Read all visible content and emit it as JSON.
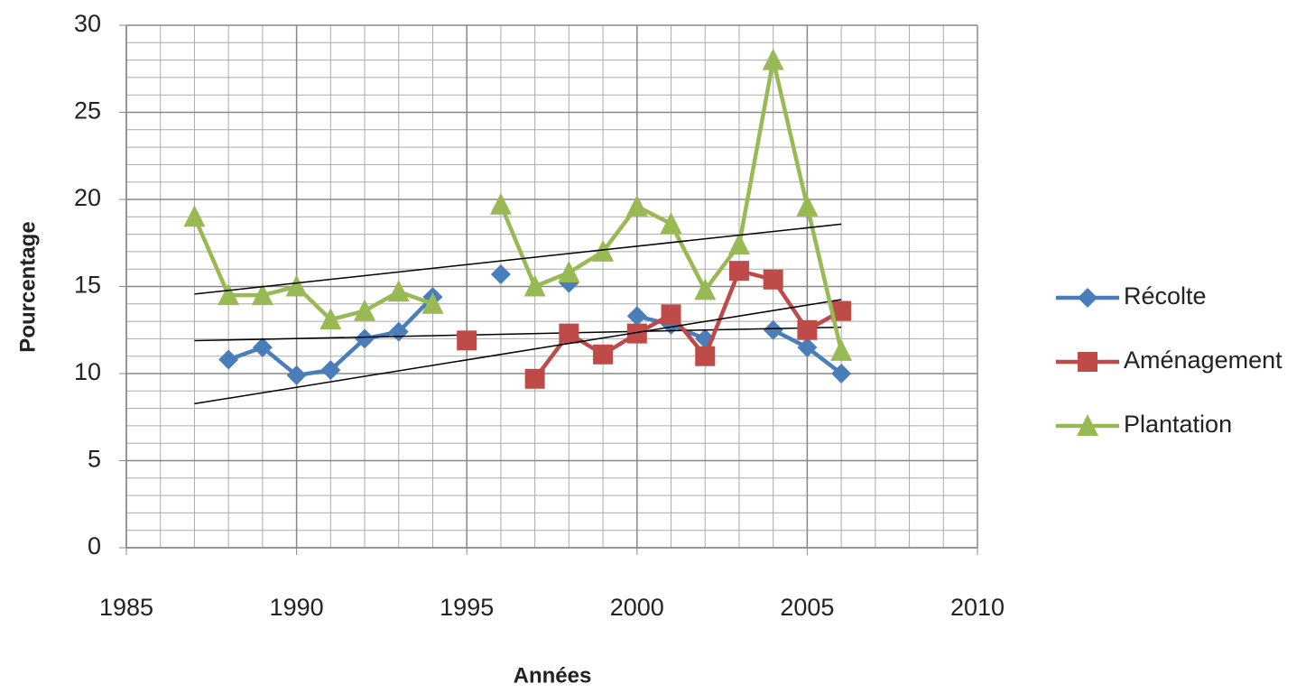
{
  "chart_data": {
    "type": "line",
    "x_label": "Années",
    "y_label": "Pourcentage",
    "x": [
      1987,
      1988,
      1989,
      1990,
      1991,
      1992,
      1993,
      1994,
      1995,
      1996,
      1997,
      1998,
      1999,
      2000,
      2001,
      2002,
      2003,
      2004,
      2005,
      2006
    ],
    "series": [
      {
        "name": "Récolte",
        "color": "#4a7ebb",
        "marker": "diamond",
        "values": [
          null,
          10.8,
          11.5,
          9.9,
          10.2,
          12.0,
          12.4,
          14.4,
          null,
          15.7,
          null,
          15.2,
          null,
          13.3,
          12.8,
          12.0,
          null,
          12.5,
          11.5,
          10.0
        ]
      },
      {
        "name": "Aménagement",
        "color": "#be4b48",
        "marker": "square",
        "values": [
          null,
          null,
          null,
          null,
          null,
          null,
          null,
          null,
          11.9,
          null,
          9.7,
          12.3,
          11.1,
          12.3,
          13.4,
          11.0,
          15.9,
          15.4,
          12.5,
          13.6
        ]
      },
      {
        "name": "Plantation",
        "color": "#98b954",
        "marker": "triangle",
        "values": [
          19.0,
          14.5,
          14.5,
          15.0,
          13.1,
          13.6,
          14.7,
          14.0,
          null,
          19.7,
          15.0,
          15.8,
          17.0,
          19.6,
          18.6,
          14.8,
          17.4,
          28.0,
          19.6,
          11.3
        ]
      }
    ],
    "xlim": [
      1985,
      2010
    ],
    "xticks": [
      1985,
      1990,
      1995,
      2000,
      2005,
      2010
    ],
    "ylim": [
      0,
      30
    ],
    "yticks": [
      0,
      5,
      10,
      15,
      20,
      25,
      30
    ],
    "grid": true,
    "minor_grid": true,
    "trendline": true,
    "legend": "right"
  }
}
